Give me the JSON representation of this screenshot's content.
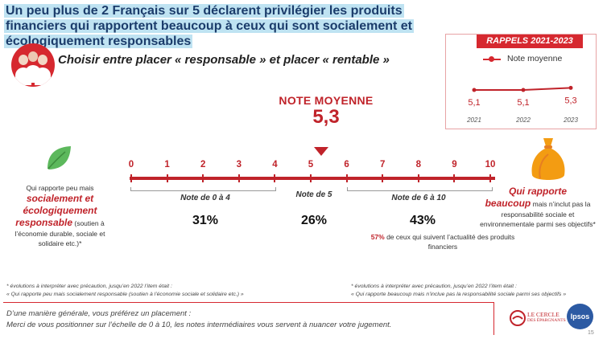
{
  "header": {
    "title": "Un peu plus de 2 Français sur 5 déclarent privilégier les produits financiers qui rapportent beaucoup à ceux qui sont socialement et écologiquement responsables",
    "subtitle": "Choisir entre placer « responsable » et placer « rentable »"
  },
  "main_score": {
    "label": "NOTE MOYENNE",
    "value": "5,3"
  },
  "groups": [
    {
      "label": "Note de 0 à 4",
      "percent": "31%"
    },
    {
      "label": "Note de 5",
      "percent": "26%"
    },
    {
      "label": "Note de 6 à 10",
      "percent": "43%"
    }
  ],
  "subnote": {
    "highlight": "57%",
    "text": " de ceux qui suivent l’actualité des produits financiers"
  },
  "left_panel": {
    "line1": "Qui rapporte peu mais",
    "emphasis": "socialement et écologiquement responsable",
    "rest": " (soutien à l’économie durable, sociale et solidaire etc.)*"
  },
  "right_panel": {
    "emphasis1": "Qui rapporte",
    "emphasis2": "beaucoup",
    "rest": " mais n’inclut pas la responsabilité sociale et environnementale parmi ses objectifs*"
  },
  "rappels": {
    "title": "RAPPELS 2021-2023",
    "legend": "Note moyenne"
  },
  "footnotes": {
    "left1": "* évolutions à interpréter avec précaution, jusqu’en 2022 l’item était :",
    "left2": "« Qui rapporte peu mais socialement responsable (soutien à l’économie sociale et solidaire etc.) »",
    "right1": "* évolutions à interpréter avec précaution, jusqu’en 2022 l’item était :",
    "right2": "« Qui rapporte beaucoup mais n’inclue pas la responsabilité sociale parmi ses objectifs »"
  },
  "question": {
    "line1": "D’une manière générale, vous préférez un placement :",
    "line2": "Merci de vous positionner sur l’échelle de 0 à 10, les notes intermédiaires vous servent à nuancer votre jugement."
  },
  "logos": {
    "cercle_line1": "LE CERCLE",
    "cercle_line2": "DES ÉPARGNANTS",
    "ipsos": "Ipsos"
  },
  "page_number": "15",
  "colors": {
    "accent": "#c0232a",
    "title_bg": "#bfe3f2",
    "title_text": "#1b3c6b"
  },
  "chart_data": [
    {
      "type": "line",
      "series": [
        {
          "name": "Note moyenne",
          "values": [
            5.1,
            5.1,
            5.3
          ],
          "labels": [
            "5,1",
            "5,1",
            "5,3"
          ]
        }
      ],
      "x": [
        "2021",
        "2022",
        "2023"
      ],
      "ylim": [
        0,
        10
      ]
    },
    {
      "type": "scale",
      "ticks": [
        "0",
        "1",
        "2",
        "3",
        "4",
        "5",
        "6",
        "7",
        "8",
        "9",
        "10"
      ],
      "min": 0,
      "max": 10,
      "marker_value": 5.3
    }
  ]
}
